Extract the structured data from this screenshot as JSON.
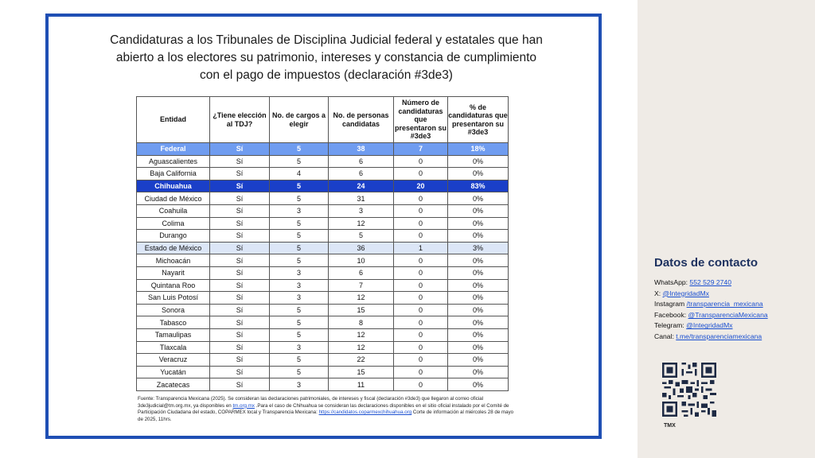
{
  "title_lines": [
    "Candidaturas a los Tribunales de Disciplina Judicial federal y estatales que han",
    "abierto a los electores su patrimonio, intereses y constancia de cumplimiento",
    "con el pago de impuestos (declaración #3de3)"
  ],
  "table": {
    "headers": [
      "Entidad",
      "¿Tiene elección al TDJ?",
      "No. de cargos a elegir",
      "No. de personas candidatas",
      "Número de candidaturas que presentaron su #3de3",
      "% de candidaturas que presentaron su #3de3"
    ],
    "rows": [
      [
        "Federal",
        "Sí",
        "5",
        "38",
        "7",
        "18%"
      ],
      [
        "Aguascalientes",
        "Sí",
        "5",
        "6",
        "0",
        "0%"
      ],
      [
        "Baja California",
        "Sí",
        "4",
        "6",
        "0",
        "0%"
      ],
      [
        "Chihuahua",
        "Sí",
        "5",
        "24",
        "20",
        "83%"
      ],
      [
        "Ciudad de México",
        "Sí",
        "5",
        "31",
        "0",
        "0%"
      ],
      [
        "Coahuila",
        "Sí",
        "3",
        "3",
        "0",
        "0%"
      ],
      [
        "Colima",
        "Sí",
        "5",
        "12",
        "0",
        "0%"
      ],
      [
        "Durango",
        "Sí",
        "5",
        "5",
        "0",
        "0%"
      ],
      [
        "Estado de México",
        "Sí",
        "5",
        "36",
        "1",
        "3%"
      ],
      [
        "Michoacán",
        "Sí",
        "5",
        "10",
        "0",
        "0%"
      ],
      [
        "Nayarit",
        "Sí",
        "3",
        "6",
        "0",
        "0%"
      ],
      [
        "Quintana Roo",
        "Sí",
        "3",
        "7",
        "0",
        "0%"
      ],
      [
        "San Luis Potosí",
        "Sí",
        "3",
        "12",
        "0",
        "0%"
      ],
      [
        "Sonora",
        "Sí",
        "5",
        "15",
        "0",
        "0%"
      ],
      [
        "Tabasco",
        "Sí",
        "5",
        "8",
        "0",
        "0%"
      ],
      [
        "Tamaulipas",
        "Sí",
        "5",
        "12",
        "0",
        "0%"
      ],
      [
        "Tlaxcala",
        "Sí",
        "3",
        "12",
        "0",
        "0%"
      ],
      [
        "Veracruz",
        "Sí",
        "5",
        "22",
        "0",
        "0%"
      ],
      [
        "Yucatán",
        "Sí",
        "5",
        "15",
        "0",
        "0%"
      ],
      [
        "Zacatecas",
        "Sí",
        "3",
        "11",
        "0",
        "0%"
      ]
    ],
    "highlight_light": [
      "Federal"
    ],
    "highlight_dark": [
      "Chihuahua"
    ],
    "highlight_pale": [
      "Estado de México"
    ]
  },
  "source": {
    "text1": "Fuente: Transparencia Mexicana (2025). Se consideran las declaraciones patrimoniales, de intereses y fiscal (declaración #3de3) que llegaron al correo oficial 3de3judicial@tm.org.mx, ya disponibles en ",
    "link1": "tm.org.mx",
    "text2": " .Para el caso de Chihuahua se consideran las declaraciones disponibles en el sitio oficial instalado por el Comité de Participación Ciudadana del estado, COPARMEX local y Transparencia Mexicana: ",
    "link2": "https://candidatos.coparmexchihuahua.org",
    "text3": " Corte de información al miércoles 28 de mayo de 2025, 11hrs."
  },
  "contact": {
    "title": "Datos de contacto",
    "lines": [
      {
        "label": "WhatsApp: ",
        "value": "552 529 2740"
      },
      {
        "label": "X: ",
        "value": "@IntegridadMx"
      },
      {
        "label": "Instagram ",
        "value": "/transparencia_mexicana"
      },
      {
        "label": "Facebook: ",
        "value": "@TransparenciaMexicana"
      },
      {
        "label": "Telegram: ",
        "value": "@IntegridadMx"
      },
      {
        "label": "Canal: ",
        "value": "t.me/transparenciamexicana"
      }
    ],
    "logo_text": "TMX"
  },
  "colors": {
    "frame": "#1f4fb4",
    "highlight_light": "#6f9cf0",
    "highlight_dark": "#1a3fc8",
    "highlight_pale": "#dce6f7",
    "panel": "#efebe6",
    "contact_title": "#1e3260"
  }
}
